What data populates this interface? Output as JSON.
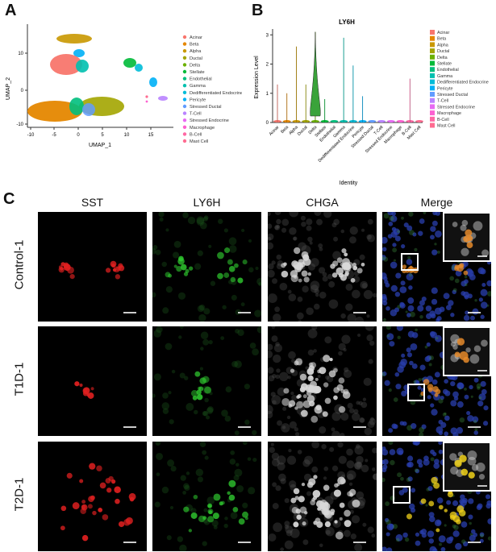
{
  "panels": {
    "a": {
      "letter": "A",
      "xlabel": "UMAP_1",
      "ylabel": "UMAP_2",
      "xticks": [
        "-10",
        "-5",
        "0",
        "5",
        "10",
        "15"
      ],
      "yticks": [
        "10",
        "0",
        "-10"
      ]
    },
    "b": {
      "letter": "B",
      "title": "LY6H",
      "xlabel": "Identity",
      "ylabel": "Expression Level",
      "yticks": [
        "3",
        "2",
        "1",
        "0"
      ]
    },
    "c": {
      "letter": "C"
    }
  },
  "legend": [
    {
      "name": "Acinar",
      "color": "#f8766d"
    },
    {
      "name": "Beta",
      "color": "#e58700"
    },
    {
      "name": "Alpha",
      "color": "#c99800"
    },
    {
      "name": "Ductal",
      "color": "#a3a500"
    },
    {
      "name": "Delta",
      "color": "#6bb100"
    },
    {
      "name": "Stellate",
      "color": "#00ba38"
    },
    {
      "name": "Endothelial",
      "color": "#00bf7d"
    },
    {
      "name": "Gamma",
      "color": "#00c0af"
    },
    {
      "name": "Dedifferentiated Endocrine",
      "color": "#00bcd8"
    },
    {
      "name": "Pericyte",
      "color": "#00b0f6"
    },
    {
      "name": "Stressed Ductal",
      "color": "#619cff"
    },
    {
      "name": "T-Cell",
      "color": "#b983ff"
    },
    {
      "name": "Stressed Endocrine",
      "color": "#e76bf3"
    },
    {
      "name": "Macrophage",
      "color": "#fd61d1"
    },
    {
      "name": "B-Cell",
      "color": "#ff67a4"
    },
    {
      "name": "Mast Cell",
      "color": "#ff6c91"
    }
  ],
  "chart_data": {
    "type": "violin",
    "title": "LY6H",
    "xlabel": "Identity",
    "ylabel": "Expression Level",
    "ylim": [
      0,
      3.2
    ],
    "categories": [
      "Acinar",
      "Beta",
      "Alpha",
      "Ductal",
      "Delta",
      "Stellate",
      "Endothelial",
      "Gamma",
      "Dedifferentiated Endocrine",
      "Pericyte",
      "Stressed Ductal",
      "T-Cell",
      "Stressed Endocrine",
      "Macrophage",
      "B-Cell",
      "Mast Cell"
    ],
    "max_values": [
      1.3,
      1.0,
      2.6,
      1.3,
      3.1,
      0.8,
      0,
      2.9,
      1.95,
      0.9,
      0,
      0.05,
      0,
      0,
      1.5,
      0
    ]
  },
  "micrograph": {
    "columns": [
      "SST",
      "LY6H",
      "CHGA",
      "Merge"
    ],
    "rows": [
      "Control-1",
      "T1D-1",
      "T2D-1"
    ]
  }
}
